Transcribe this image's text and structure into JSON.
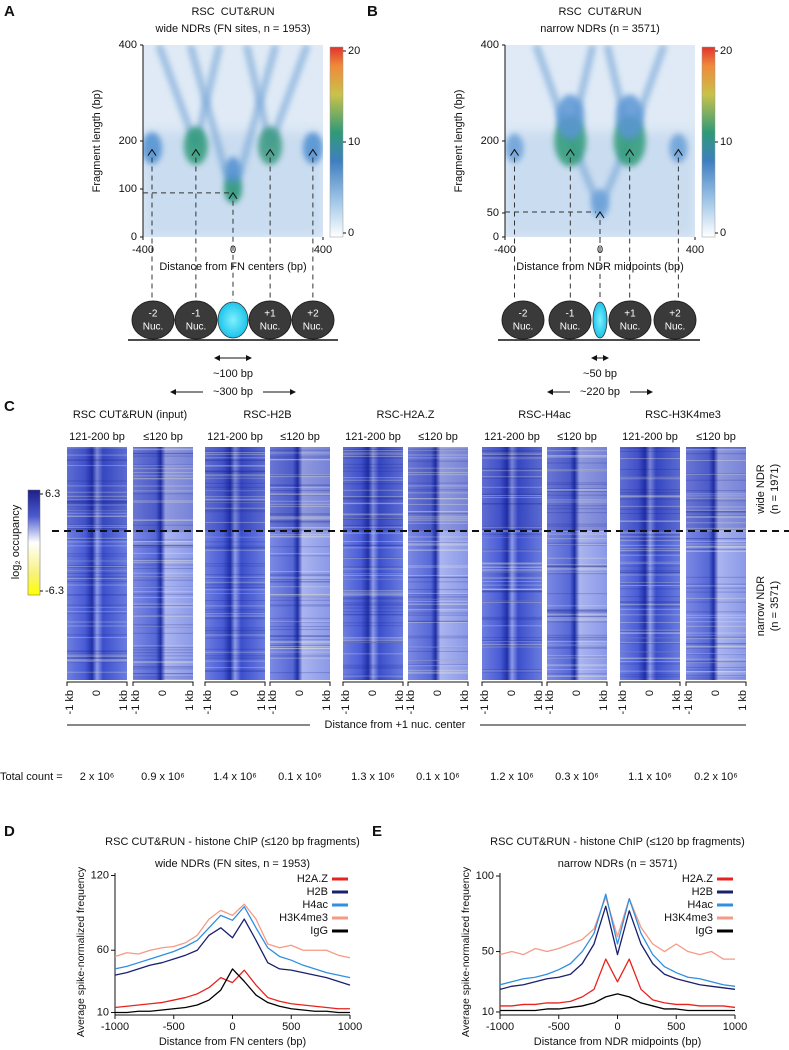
{
  "panel_labels": [
    "A",
    "B",
    "C",
    "D",
    "E"
  ],
  "chart_data": [
    {
      "type": "density",
      "title": "RSC  CUT&RUN",
      "subtitle": "wide NDRs (FN sites, n = 1953)",
      "xlabel": "Distance from FN centers (bp)",
      "ylabel": "Fragment length (bp)",
      "xlim": [
        -400,
        400
      ],
      "xticks": [
        -400,
        0,
        400
      ],
      "ylim": [
        0,
        400
      ],
      "yticks": [
        0,
        100,
        200,
        400
      ],
      "colorbar": {
        "lim": [
          0,
          20
        ],
        "ticks": [
          0,
          10,
          20
        ]
      },
      "nucleosome_labels": [
        "-2",
        "-1",
        "+1",
        "+2"
      ],
      "nucleosome_word": "Nuc.",
      "spacings": [
        "~100 bp",
        "~300 bp"
      ]
    },
    {
      "type": "density",
      "title": "RSC  CUT&RUN",
      "subtitle": "narrow NDRs (n = 3571)",
      "xlabel": "Distance from NDR midpoints (bp)",
      "ylabel": "Fragment length (bp)",
      "xlim": [
        -400,
        400
      ],
      "xticks": [
        -400,
        0,
        400
      ],
      "ylim": [
        0,
        400
      ],
      "yticks": [
        0,
        50,
        200,
        400
      ],
      "colorbar": {
        "lim": [
          0,
          20
        ],
        "ticks": [
          0,
          10,
          20
        ]
      },
      "nucleosome_labels": [
        "-2",
        "-1",
        "+1",
        "+2"
      ],
      "nucleosome_word": "Nuc.",
      "spacings": [
        "~50 bp",
        "~220 bp"
      ]
    },
    {
      "type": "line",
      "title": "RSC CUT&RUN - histone ChIP (≤120 bp fragments)",
      "subtitle": "wide NDRs (FN sites, n = 1953)",
      "xlabel": "Distance from FN centers (bp)",
      "ylabel": "Average spike-normalized frequency",
      "x": [
        -1000,
        -900,
        -800,
        -700,
        -600,
        -500,
        -400,
        -300,
        -200,
        -100,
        0,
        100,
        200,
        300,
        400,
        500,
        600,
        700,
        800,
        900,
        1000
      ],
      "series": [
        {
          "name": "H3K4me3",
          "color": "#f59a86",
          "values": [
            55,
            58,
            57,
            60,
            62,
            63,
            66,
            72,
            85,
            92,
            88,
            97,
            85,
            65,
            62,
            64,
            60,
            60,
            60,
            56,
            54
          ]
        },
        {
          "name": "H4ac",
          "color": "#2f8fe0",
          "values": [
            45,
            47,
            50,
            53,
            56,
            59,
            63,
            68,
            78,
            88,
            84,
            95,
            78,
            62,
            55,
            52,
            48,
            45,
            42,
            40,
            38
          ]
        },
        {
          "name": "H2B",
          "color": "#1a1f6e",
          "values": [
            40,
            42,
            45,
            48,
            50,
            53,
            56,
            60,
            72,
            78,
            70,
            85,
            68,
            50,
            45,
            44,
            42,
            40,
            38,
            35,
            32
          ]
        },
        {
          "name": "H2A.Z",
          "color": "#e8231e",
          "values": [
            14,
            15,
            16,
            17,
            18,
            20,
            22,
            25,
            30,
            38,
            34,
            44,
            32,
            22,
            19,
            17,
            16,
            15,
            14,
            13,
            13
          ]
        },
        {
          "name": "IgG",
          "color": "#000000",
          "values": [
            10,
            10,
            11,
            11,
            12,
            13,
            14,
            16,
            20,
            28,
            45,
            35,
            24,
            18,
            15,
            13,
            12,
            11,
            11,
            10,
            10
          ]
        }
      ],
      "legend_order": [
        3,
        2,
        1,
        0,
        4
      ],
      "legend": "upper right",
      "xlim": [
        -1000,
        1000
      ],
      "xticks": [
        -1000,
        -500,
        0,
        500,
        1000
      ],
      "ylim": [
        8,
        122
      ],
      "yticks": [
        10,
        60,
        120
      ]
    },
    {
      "type": "line",
      "title": "RSC CUT&RUN - histone ChIP (≤120 bp fragments)",
      "subtitle": "narrow NDRs (n = 3571)",
      "xlabel": "Distance from NDR midpoints (bp)",
      "ylabel": "Average spike-normalized frequency",
      "x": [
        -1000,
        -900,
        -800,
        -700,
        -600,
        -500,
        -400,
        -300,
        -200,
        -100,
        0,
        100,
        200,
        300,
        400,
        500,
        600,
        700,
        800,
        900,
        1000
      ],
      "series": [
        {
          "name": "H3K4me3",
          "color": "#f59a86",
          "values": [
            48,
            50,
            48,
            52,
            50,
            52,
            55,
            58,
            65,
            86,
            60,
            85,
            66,
            55,
            50,
            55,
            50,
            48,
            50,
            45,
            45
          ]
        },
        {
          "name": "H4ac",
          "color": "#2f8fe0",
          "values": [
            28,
            30,
            32,
            33,
            35,
            38,
            42,
            50,
            62,
            88,
            55,
            85,
            62,
            48,
            40,
            36,
            33,
            32,
            30,
            28,
            27
          ]
        },
        {
          "name": "H2B",
          "color": "#1a1f6e",
          "values": [
            25,
            27,
            28,
            30,
            32,
            33,
            35,
            42,
            55,
            80,
            48,
            77,
            55,
            42,
            35,
            32,
            30,
            28,
            27,
            26,
            25
          ]
        },
        {
          "name": "H2A.Z",
          "color": "#e8231e",
          "values": [
            14,
            14,
            15,
            15,
            16,
            16,
            17,
            20,
            25,
            45,
            30,
            45,
            25,
            18,
            16,
            15,
            15,
            14,
            14,
            14,
            13
          ]
        },
        {
          "name": "IgG",
          "color": "#000000",
          "values": [
            11,
            11,
            11,
            11,
            12,
            12,
            13,
            14,
            16,
            20,
            22,
            20,
            16,
            14,
            12,
            12,
            11,
            11,
            11,
            11,
            11
          ]
        }
      ],
      "legend_order": [
        3,
        2,
        1,
        0,
        4
      ],
      "legend": "upper right",
      "xlim": [
        -1000,
        1000
      ],
      "xticks": [
        -1000,
        -500,
        0,
        500,
        1000
      ],
      "ylim": [
        8,
        102
      ],
      "yticks": [
        10,
        50,
        100
      ]
    }
  ],
  "panel_c": {
    "groups": [
      {
        "name": "RSC CUT&RUN (input)",
        "counts": [
          "2 x 10⁶",
          "0.9 x 10⁶"
        ]
      },
      {
        "name": "RSC-H2B",
        "counts": [
          "1.4 x 10⁶",
          "0.1 x 10⁶"
        ]
      },
      {
        "name": "RSC-H2A.Z",
        "counts": [
          "1.3 x 10⁶",
          "0.1 x 10⁶"
        ]
      },
      {
        "name": "RSC-H4ac",
        "counts": [
          "1.2 x 10⁶",
          "0.3 x 10⁶"
        ]
      },
      {
        "name": "RSC-H3K4me3",
        "counts": [
          "1.1 x 10⁶",
          "0.2 x 10⁶"
        ]
      }
    ],
    "fragment_classes": [
      "121-200 bp",
      "≤120 bp"
    ],
    "x_ticks": [
      "-1 kb",
      "0",
      "1 kb"
    ],
    "xlabel": "Distance from +1 nuc. center",
    "total_label": "Total count =",
    "row_groups": [
      {
        "name": "wide NDR",
        "n": "(n = 1971)"
      },
      {
        "name": "narrow NDR",
        "n": "(n = 3571)"
      }
    ],
    "colorbar": {
      "label": "log₂ occupancy",
      "ticks": [
        6.3,
        -6.3
      ]
    }
  }
}
